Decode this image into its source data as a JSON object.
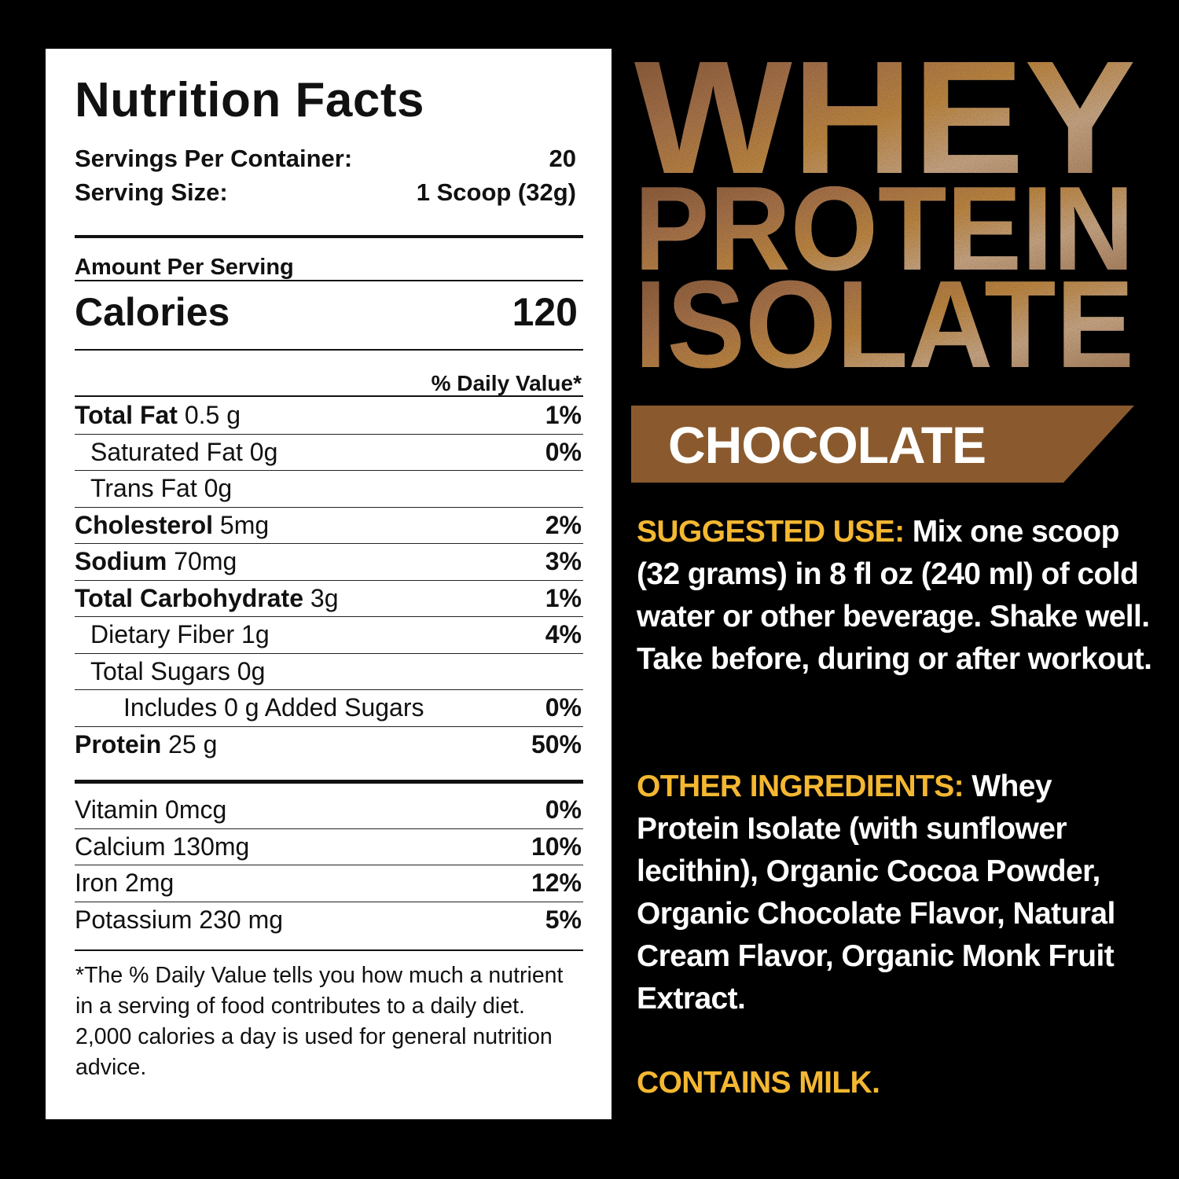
{
  "colors": {
    "gold": "#f4b731",
    "banner": "#8a5a2e",
    "background": "#000000",
    "panel": "#ffffff"
  },
  "nutrition": {
    "title": "Nutrition Facts",
    "servings_label": "Servings Per Container:",
    "servings_value": "20",
    "size_label": "Serving Size:",
    "size_value": "1 Scoop (32g)",
    "amount_per_serving": "Amount Per Serving",
    "calories_label": "Calories",
    "calories_value": "120",
    "dv_header": "% Daily Value*",
    "rows": [
      {
        "name": "Total Fat",
        "amount": "0.5 g",
        "dv": "1%"
      },
      {
        "name": "Saturated Fat 0g",
        "amount": "",
        "dv": "0%"
      },
      {
        "name": "Trans Fat 0g",
        "amount": "",
        "dv": ""
      },
      {
        "name": "Cholesterol",
        "amount": "5mg",
        "dv": "2%"
      },
      {
        "name": "Sodium",
        "amount": "70mg",
        "dv": "3%"
      },
      {
        "name": "Total Carbohydrate",
        "amount": "3g",
        "dv": "1%"
      },
      {
        "name": "Dietary Fiber 1g",
        "amount": "",
        "dv": "4%"
      },
      {
        "name": "Total Sugars 0g",
        "amount": "",
        "dv": ""
      },
      {
        "name": "Includes 0 g Added Sugars",
        "amount": "",
        "dv": "0%"
      },
      {
        "name": "Protein",
        "amount": "25 g",
        "dv": "50%"
      }
    ],
    "minerals": [
      {
        "name": "Vitamin 0mcg",
        "dv": "0%"
      },
      {
        "name": "Calcium 130mg",
        "dv": "10%"
      },
      {
        "name": "Iron 2mg",
        "dv": "12%"
      },
      {
        "name": "Potassium 230 mg",
        "dv": "5%"
      }
    ],
    "footnote": "*The % Daily Value tells you how much a nutrient in a serving of food contributes to a daily diet. 2,000 calories a day is used for general nutrition advice."
  },
  "product": {
    "title_lines": [
      "WHEY",
      "PROTEIN",
      "ISOLATE"
    ],
    "flavor": "CHOCOLATE",
    "suggested_use_label": "SUGGESTED USE:",
    "suggested_use_text": " Mix one scoop (32 grams) in 8 fl oz (240 ml) of cold water or other beverage. Shake well. Take before, during or after workout.",
    "ingredients_label": "OTHER INGREDIENTS:",
    "ingredients_text": " Whey Protein Isolate (with sunflower lecithin), Organic Cocoa Powder, Organic Chocolate Flavor, Natural Cream Flavor, Organic Monk Fruit Extract.",
    "allergen": "CONTAINS MILK."
  }
}
